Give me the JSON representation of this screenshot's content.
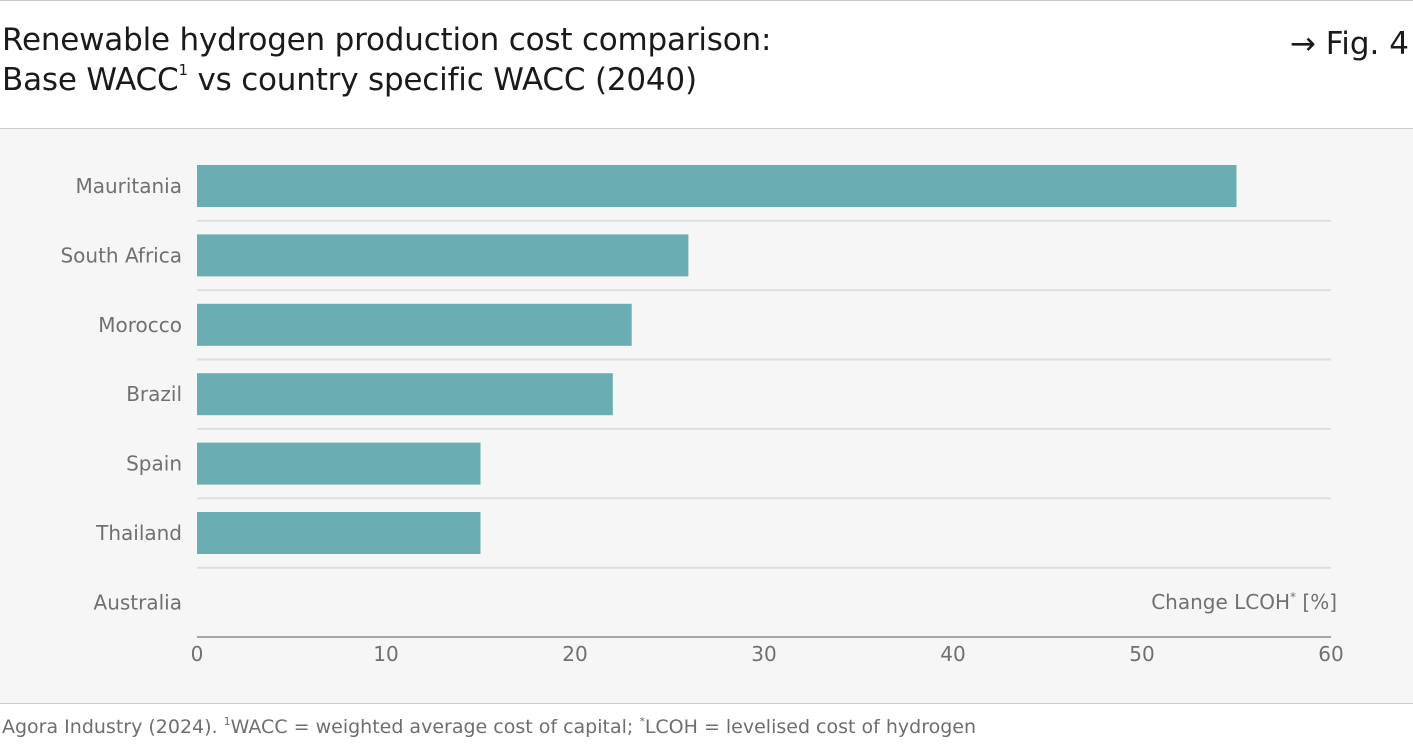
{
  "header": {
    "title_line1": "Renewable hydrogen production cost comparison:",
    "title_line2_a": "Base WACC",
    "title_line2_sup": "1",
    "title_line2_b": " vs country specific WACC (2040)",
    "fig_label": "→ Fig. 4"
  },
  "colors": {
    "bar": "#6aaeb4",
    "separator": "#dedede",
    "axis": "#8c8c8c",
    "label": "#707070"
  },
  "chart_data": {
    "type": "bar",
    "orientation": "horizontal",
    "categories": [
      "Mauritania",
      "South Africa",
      "Morocco",
      "Brazil",
      "Spain",
      "Thailand",
      "Australia"
    ],
    "values": [
      55,
      26,
      23,
      22,
      15,
      15,
      0
    ],
    "xlabel": "Change LCOH",
    "xlabel_sup": "*",
    "xlabel_unit": " [%]",
    "xlim": [
      0,
      60
    ],
    "xticks": [
      0,
      10,
      20,
      30,
      40,
      50,
      60
    ],
    "grid": false,
    "legend": "none"
  },
  "footer": {
    "source_a": "Agora Industry (2024). ",
    "source_sup1": "1",
    "source_b": "WACC = weighted average cost of capital; ",
    "source_sup2": "*",
    "source_c": "LCOH = levelised cost of hydrogen"
  }
}
